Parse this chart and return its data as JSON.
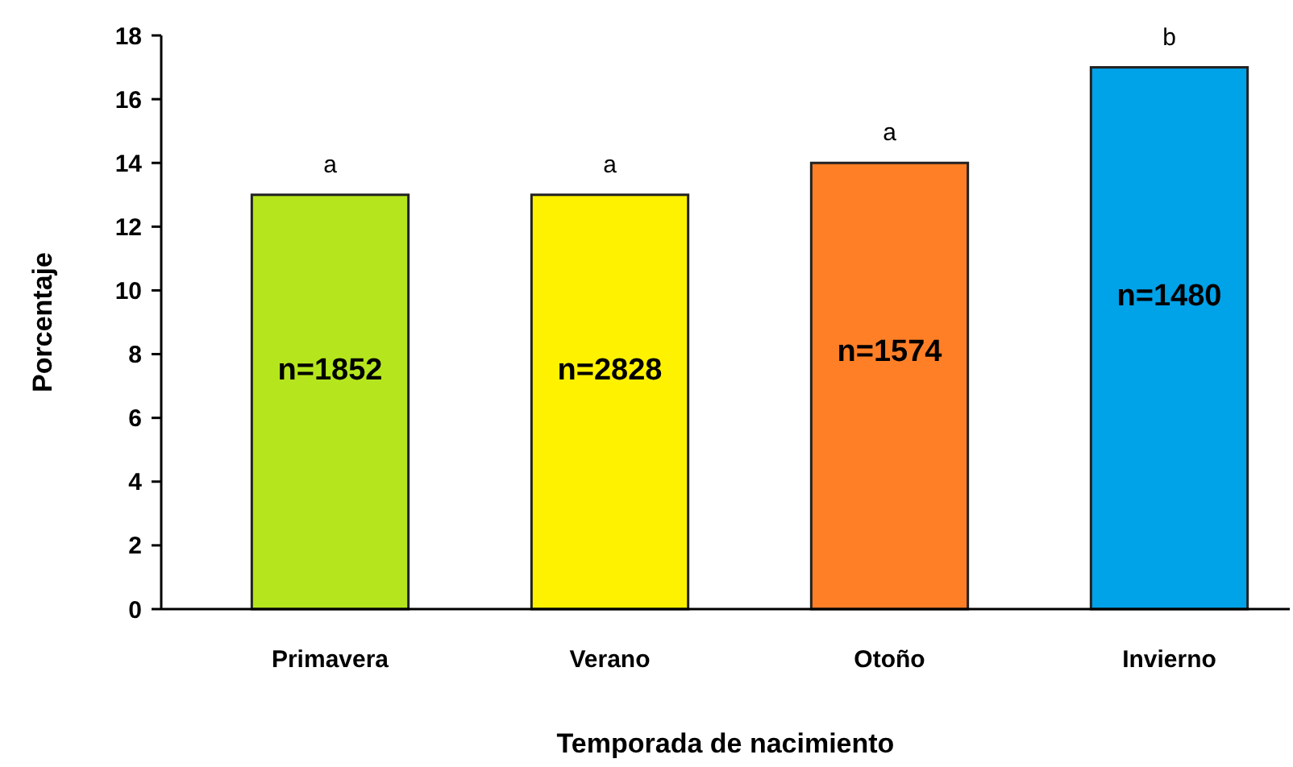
{
  "chart_data": {
    "type": "bar",
    "xlabel": "Temporada de nacimiento",
    "ylabel": "Porcentaje",
    "categories": [
      "Primavera",
      "Verano",
      "Otoño",
      "Invierno"
    ],
    "values": [
      13,
      13,
      14,
      17
    ],
    "colors": [
      "#b5e61d",
      "#fff200",
      "#ff7f27",
      "#00a2e8"
    ],
    "ylim": [
      0,
      18
    ],
    "yticks": [
      0,
      2,
      4,
      6,
      8,
      10,
      12,
      14,
      16,
      18
    ],
    "grid": false,
    "annotations": [
      {
        "text": "a",
        "x": "Primavera",
        "y": 13
      },
      {
        "text": "a",
        "x": "Verano",
        "y": 13
      },
      {
        "text": "a",
        "x": "Otoño",
        "y": 14
      },
      {
        "text": "b",
        "x": "Invierno",
        "y": 17
      },
      "n=1852",
      "n=2828",
      "n=1574",
      "n=1480"
    ]
  }
}
